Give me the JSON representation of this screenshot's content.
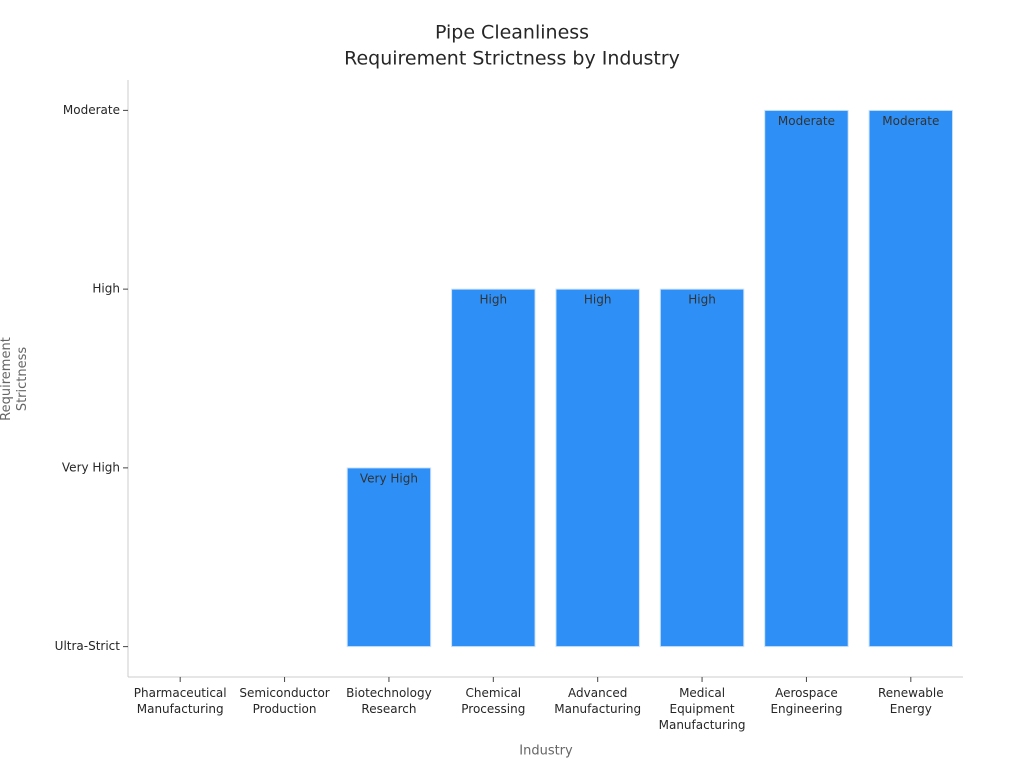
{
  "chart_data": {
    "type": "bar",
    "title": [
      "Pipe Cleanliness",
      "Requirement Strictness by Industry"
    ],
    "x_label": "Industry",
    "y_label": "Requirement Strictness",
    "categories": [
      "Pharmaceutical Manufacturing",
      "Semiconductor Production",
      "Biotechnology Research",
      "Chemical Processing",
      "Advanced Manufacturing",
      "Medical Equipment Manufacturing",
      "Aerospace Engineering",
      "Renewable Energy"
    ],
    "values": [
      0,
      0,
      1,
      2,
      2,
      2,
      3,
      3
    ],
    "value_labels": [
      null,
      null,
      "Very High",
      "High",
      "High",
      "High",
      "Moderate",
      "Moderate"
    ],
    "color": "#2e90f6",
    "ylim": [
      -0.17,
      3.17
    ],
    "yticks": [
      {
        "value": 0,
        "label": "Ultra-Strict"
      },
      {
        "value": 1,
        "label": "Very High"
      },
      {
        "value": 2,
        "label": "High"
      },
      {
        "value": 3,
        "label": "Moderate"
      }
    ],
    "grid": false
  }
}
